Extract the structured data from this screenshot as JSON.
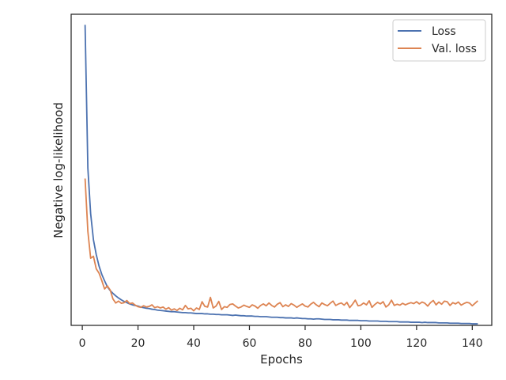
{
  "chart_data": {
    "type": "line",
    "title": "",
    "xlabel": "Epochs",
    "ylabel": "Negative log-likelihood",
    "xlim": [
      -4,
      147
    ],
    "ylim": [
      0,
      100
    ],
    "y_tick_labels": false,
    "x_ticks": [
      0,
      20,
      40,
      60,
      80,
      100,
      120,
      140
    ],
    "grid": false,
    "legend_position": "top-right",
    "series": [
      {
        "name": "Loss",
        "color": "#4c72b0",
        "x": [
          1,
          2,
          3,
          4,
          5,
          6,
          7,
          8,
          9,
          10,
          11,
          12,
          13,
          14,
          15,
          16,
          17,
          18,
          19,
          20,
          21,
          22,
          23,
          24,
          25,
          26,
          27,
          28,
          29,
          30,
          31,
          32,
          33,
          34,
          35,
          36,
          37,
          38,
          39,
          40,
          41,
          42,
          43,
          44,
          45,
          46,
          47,
          48,
          49,
          50,
          51,
          52,
          53,
          54,
          55,
          56,
          57,
          58,
          59,
          60,
          61,
          62,
          63,
          64,
          65,
          66,
          67,
          68,
          69,
          70,
          71,
          72,
          73,
          74,
          75,
          76,
          77,
          78,
          79,
          80,
          81,
          82,
          83,
          84,
          85,
          86,
          87,
          88,
          89,
          90,
          91,
          92,
          93,
          94,
          95,
          96,
          97,
          98,
          99,
          100,
          101,
          102,
          103,
          104,
          105,
          106,
          107,
          108,
          109,
          110,
          111,
          112,
          113,
          114,
          115,
          116,
          117,
          118,
          119,
          120,
          121,
          122,
          123,
          124,
          125,
          126,
          127,
          128,
          129,
          130,
          131,
          132,
          133,
          134,
          135,
          136,
          137,
          138,
          139,
          140,
          141,
          142
        ],
        "y": [
          96.6,
          50.5,
          35.9,
          27.5,
          22.8,
          19.1,
          16.4,
          14.3,
          12.4,
          11.2,
          10.3,
          9.5,
          8.8,
          8.2,
          7.7,
          7.3,
          6.9,
          6.6,
          6.4,
          6.2,
          5.9,
          5.7,
          5.5,
          5.4,
          5.2,
          5.1,
          4.9,
          4.8,
          4.7,
          4.6,
          4.5,
          4.4,
          4.4,
          4.3,
          4.2,
          4.1,
          4.1,
          4.0,
          4.0,
          3.9,
          3.8,
          3.8,
          3.8,
          3.7,
          3.7,
          3.6,
          3.6,
          3.5,
          3.5,
          3.4,
          3.4,
          3.4,
          3.3,
          3.2,
          3.3,
          3.2,
          3.1,
          3.1,
          3.0,
          3.0,
          3.0,
          2.9,
          2.9,
          2.8,
          2.8,
          2.8,
          2.7,
          2.6,
          2.6,
          2.6,
          2.5,
          2.5,
          2.4,
          2.4,
          2.4,
          2.3,
          2.4,
          2.3,
          2.2,
          2.2,
          2.1,
          2.1,
          2.0,
          2.1,
          2.1,
          2.0,
          1.9,
          1.9,
          1.9,
          1.8,
          1.8,
          1.8,
          1.7,
          1.7,
          1.7,
          1.6,
          1.6,
          1.6,
          1.6,
          1.5,
          1.5,
          1.5,
          1.4,
          1.4,
          1.4,
          1.4,
          1.3,
          1.3,
          1.3,
          1.2,
          1.2,
          1.2,
          1.2,
          1.1,
          1.1,
          1.1,
          1.1,
          1.0,
          1.0,
          1.0,
          1.0,
          0.9,
          1.0,
          0.9,
          0.9,
          0.9,
          0.9,
          0.8,
          0.8,
          0.8,
          0.8,
          0.7,
          0.7,
          0.7,
          0.7,
          0.6,
          0.6,
          0.6,
          0.6,
          0.5,
          0.5,
          0.5
        ]
      },
      {
        "name": "Val. loss",
        "color": "#dd8452",
        "x": [
          1,
          2,
          3,
          4,
          5,
          6,
          7,
          8,
          9,
          10,
          11,
          12,
          13,
          14,
          15,
          16,
          17,
          18,
          19,
          20,
          21,
          22,
          23,
          24,
          25,
          26,
          27,
          28,
          29,
          30,
          31,
          32,
          33,
          34,
          35,
          36,
          37,
          38,
          39,
          40,
          41,
          42,
          43,
          44,
          45,
          46,
          47,
          48,
          49,
          50,
          51,
          52,
          53,
          54,
          55,
          56,
          57,
          58,
          59,
          60,
          61,
          62,
          63,
          64,
          65,
          66,
          67,
          68,
          69,
          70,
          71,
          72,
          73,
          74,
          75,
          76,
          77,
          78,
          79,
          80,
          81,
          82,
          83,
          84,
          85,
          86,
          87,
          88,
          89,
          90,
          91,
          92,
          93,
          94,
          95,
          96,
          97,
          98,
          99,
          100,
          101,
          102,
          103,
          104,
          105,
          106,
          107,
          108,
          109,
          110,
          111,
          112,
          113,
          114,
          115,
          116,
          117,
          118,
          119,
          120,
          121,
          122,
          123,
          124,
          125,
          126,
          127,
          128,
          129,
          130,
          131,
          132,
          133,
          134,
          135,
          136,
          137,
          138,
          139,
          140,
          141,
          142
        ],
        "y": [
          47.2,
          30.2,
          21.6,
          22.2,
          18.2,
          16.8,
          14.4,
          11.7,
          12.7,
          11.4,
          8.5,
          7.2,
          7.8,
          7.1,
          7.3,
          8.0,
          7.0,
          7.2,
          6.5,
          6.0,
          5.8,
          6.3,
          5.9,
          6.1,
          6.6,
          5.7,
          6.0,
          5.6,
          5.9,
          5.2,
          5.7,
          4.9,
          5.3,
          4.8,
          5.5,
          5.0,
          6.4,
          5.3,
          5.5,
          4.7,
          5.6,
          5.1,
          7.6,
          6.1,
          5.9,
          9.0,
          5.6,
          6.2,
          7.7,
          5.1,
          6.0,
          5.8,
          6.7,
          6.9,
          6.2,
          5.6,
          5.9,
          6.5,
          6.1,
          5.8,
          6.6,
          6.2,
          5.5,
          6.4,
          6.9,
          6.3,
          7.2,
          6.4,
          5.9,
          6.8,
          7.3,
          6.0,
          6.6,
          6.1,
          7.0,
          6.5,
          5.8,
          6.4,
          6.9,
          6.2,
          5.9,
          6.8,
          7.4,
          6.6,
          6.0,
          7.2,
          6.7,
          6.3,
          7.1,
          7.8,
          6.4,
          6.9,
          7.2,
          6.5,
          7.4,
          5.7,
          6.8,
          8.1,
          6.3,
          6.5,
          7.2,
          6.6,
          7.9,
          5.8,
          6.7,
          7.4,
          6.9,
          7.6,
          5.9,
          6.6,
          8.1,
          6.4,
          6.8,
          6.5,
          7.1,
          6.6,
          7.0,
          7.3,
          7.0,
          7.6,
          6.9,
          7.5,
          7.1,
          6.2,
          7.3,
          8.0,
          6.6,
          7.5,
          6.8,
          7.8,
          7.6,
          6.4,
          7.3,
          6.9,
          7.5,
          6.5,
          7.0,
          7.4,
          7.2,
          6.3,
          7.1,
          7.9
        ]
      }
    ]
  }
}
